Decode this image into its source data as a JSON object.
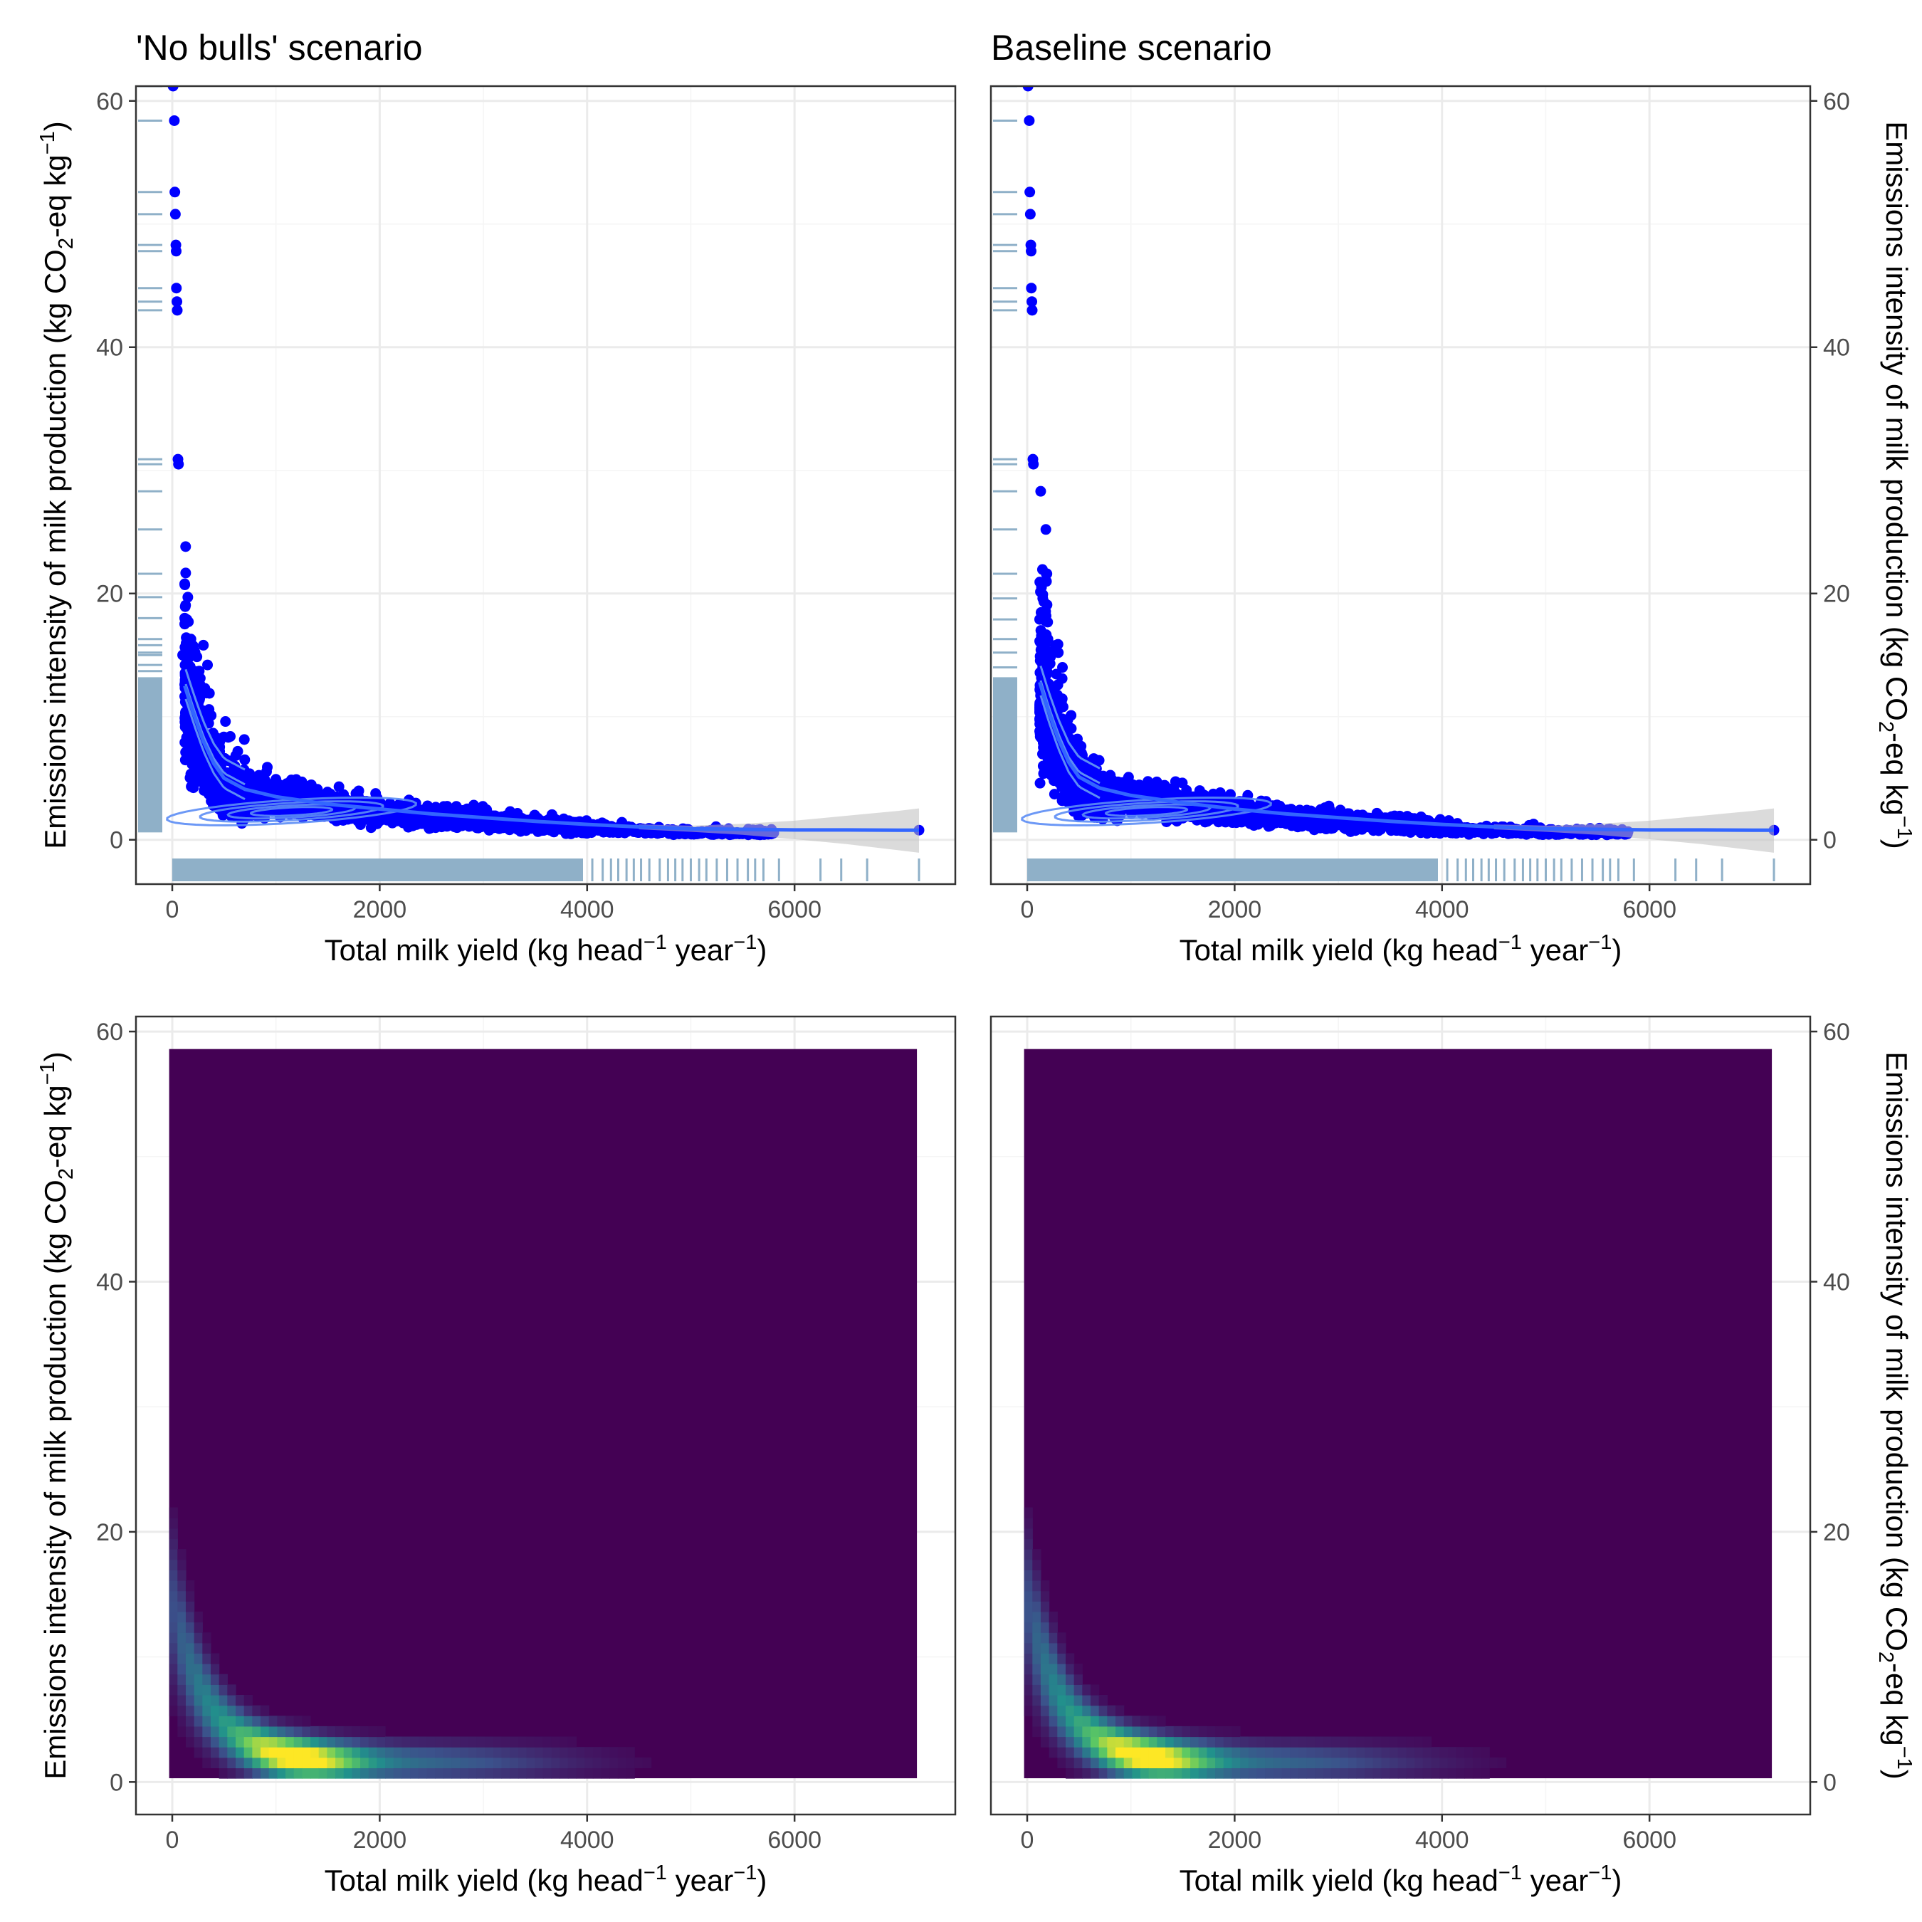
{
  "figure": {
    "tick_color": "#4d4d4d",
    "grid_major_color": "#ebebeb",
    "grid_minor_color": "#f5f5f5",
    "panel_border_color": "#333333"
  },
  "axis_labels": {
    "x_main": "Total milk yield (kg head",
    "x_sup": "−1",
    "x_mid": " year",
    "x_close": ")",
    "y_main": "Emissions intensity of milk production (kg CO",
    "y_sub": "2",
    "y_mid": "-eq kg",
    "y_sup": "−1",
    "y_close": ")"
  },
  "chart_data": [
    {
      "type": "scatter",
      "title": "'No bulls' scenario",
      "xlabel": "Total milk yield (kg head−1 year−1)",
      "ylabel": "Emissions intensity of milk production (kg CO2-eq kg−1)",
      "xlim": [
        -350,
        7550
      ],
      "ylim": [
        -3.6,
        61.2
      ],
      "xticks": [
        0,
        2000,
        4000,
        6000
      ],
      "yticks": [
        0,
        20,
        40,
        60
      ],
      "y_axis_side": "left",
      "grid": true,
      "point_color": "#0000ff",
      "smooth_color": "#3366ff",
      "ribbon_color": "#bebebe",
      "rug_color": "#8fb0c8",
      "outlier_points": [
        {
          "x": 8,
          "y": 61.2
        },
        {
          "x": 20,
          "y": 58.4
        },
        {
          "x": 25,
          "y": 52.6
        },
        {
          "x": 30,
          "y": 50.8
        },
        {
          "x": 35,
          "y": 48.3
        },
        {
          "x": 38,
          "y": 47.8
        },
        {
          "x": 40,
          "y": 44.8
        },
        {
          "x": 45,
          "y": 43.7
        },
        {
          "x": 48,
          "y": 43.0
        },
        {
          "x": 55,
          "y": 30.9
        },
        {
          "x": 60,
          "y": 30.5
        },
        {
          "x": 150,
          "y": 19.7
        },
        {
          "x": 120,
          "y": 18.0
        },
        {
          "x": 180,
          "y": 16.3
        },
        {
          "x": 300,
          "y": 15.8
        },
        {
          "x": 220,
          "y": 15.2
        },
        {
          "x": 100,
          "y": 15.0
        },
        {
          "x": 340,
          "y": 14.2
        },
        {
          "x": 260,
          "y": 13.7
        },
        {
          "x": 1250,
          "y": 4.7
        }
      ],
      "smooth_curve": {
        "x": [
          120,
          200,
          300,
          400,
          500,
          700,
          1000,
          1500,
          2000,
          2500,
          3000,
          3500,
          4000,
          4500,
          5000,
          5500,
          6000,
          6500,
          7000,
          7200
        ],
        "y": [
          12.5,
          10.4,
          8.0,
          6.2,
          5.0,
          4.1,
          3.5,
          2.9,
          2.5,
          2.1,
          1.8,
          1.5,
          1.25,
          1.05,
          0.9,
          0.85,
          0.8,
          0.8,
          0.78,
          0.78
        ]
      },
      "ribbon": {
        "x": [
          4500,
          5000,
          5500,
          6000,
          6500,
          7000,
          7200
        ],
        "ymin": [
          0.85,
          0.65,
          0.4,
          0.05,
          -0.35,
          -0.85,
          -1.05
        ],
        "ymax": [
          1.25,
          1.15,
          1.3,
          1.55,
          1.95,
          2.35,
          2.55
        ]
      },
      "y_rug": [
        61.2,
        58.4,
        52.6,
        50.8,
        48.3,
        47.8,
        44.8,
        43.7,
        43.0,
        30.9,
        30.5,
        28.3,
        25.2,
        21.6,
        19.7,
        18.0,
        16.3,
        15.8,
        15.2,
        15.0,
        14.2,
        13.7
      ],
      "x_rug_sparse": [
        3950,
        4050,
        4150,
        4230,
        4300,
        4380,
        4450,
        4520,
        4600,
        4700,
        4780,
        4850,
        4920,
        5000,
        5080,
        5150,
        5250,
        5350,
        5450,
        5550,
        5620,
        5700,
        5850,
        6250,
        6450,
        6700,
        7200
      ]
    },
    {
      "type": "scatter",
      "title": "Baseline scenario",
      "xlabel": "Total milk yield (kg head−1 year−1)",
      "ylabel": "Emissions intensity of milk production (kg CO2-eq kg−1)",
      "xlim": [
        -350,
        7550
      ],
      "ylim": [
        -3.6,
        61.2
      ],
      "xticks": [
        0,
        2000,
        4000,
        6000
      ],
      "yticks": [
        0,
        20,
        40,
        60
      ],
      "y_axis_side": "right",
      "grid": true,
      "point_color": "#0000ff",
      "smooth_color": "#3366ff",
      "ribbon_color": "#bebebe",
      "rug_color": "#8fb0c8",
      "outlier_points": [
        {
          "x": 8,
          "y": 61.2
        },
        {
          "x": 20,
          "y": 58.4
        },
        {
          "x": 25,
          "y": 52.6
        },
        {
          "x": 30,
          "y": 50.8
        },
        {
          "x": 35,
          "y": 48.3
        },
        {
          "x": 38,
          "y": 47.8
        },
        {
          "x": 40,
          "y": 44.8
        },
        {
          "x": 45,
          "y": 43.7
        },
        {
          "x": 48,
          "y": 43.0
        },
        {
          "x": 55,
          "y": 30.9
        },
        {
          "x": 60,
          "y": 30.5
        },
        {
          "x": 130,
          "y": 28.3
        },
        {
          "x": 180,
          "y": 25.2
        },
        {
          "x": 190,
          "y": 21.6
        },
        {
          "x": 150,
          "y": 19.6
        },
        {
          "x": 120,
          "y": 17.9
        },
        {
          "x": 200,
          "y": 16.3
        },
        {
          "x": 300,
          "y": 15.2
        },
        {
          "x": 340,
          "y": 14.0
        },
        {
          "x": 1250,
          "y": 4.7
        }
      ],
      "smooth_curve": {
        "x": [
          120,
          200,
          300,
          400,
          500,
          700,
          1000,
          1500,
          2000,
          2500,
          3000,
          3500,
          4000,
          4500,
          5000,
          5500,
          6000,
          6500,
          7000,
          7200
        ],
        "y": [
          12.8,
          10.6,
          8.2,
          6.3,
          5.1,
          4.2,
          3.6,
          3.0,
          2.5,
          2.1,
          1.8,
          1.5,
          1.25,
          1.05,
          0.9,
          0.85,
          0.8,
          0.8,
          0.78,
          0.78
        ]
      },
      "ribbon": {
        "x": [
          4500,
          5000,
          5500,
          6000,
          6500,
          7000,
          7200
        ],
        "ymin": [
          0.85,
          0.65,
          0.4,
          0.05,
          -0.35,
          -0.85,
          -1.05
        ],
        "ymax": [
          1.25,
          1.15,
          1.3,
          1.55,
          1.95,
          2.35,
          2.55
        ]
      },
      "y_rug": [
        61.2,
        58.4,
        52.6,
        50.8,
        48.3,
        47.8,
        44.8,
        43.7,
        43.0,
        30.9,
        30.5,
        28.3,
        25.2,
        21.6,
        19.6,
        17.9,
        16.3,
        15.2,
        14.0
      ],
      "x_rug_sparse": [
        3950,
        4050,
        4150,
        4230,
        4300,
        4380,
        4450,
        4520,
        4600,
        4700,
        4780,
        4850,
        4920,
        5000,
        5080,
        5150,
        5250,
        5350,
        5450,
        5550,
        5620,
        5700,
        5850,
        6250,
        6450,
        6700,
        7200
      ]
    },
    {
      "type": "heatmap",
      "title": "",
      "xlabel": "Total milk yield (kg head−1 year−1)",
      "ylabel": "Emissions intensity of milk production (kg CO2-eq kg−1)",
      "xlim": [
        -350,
        7550
      ],
      "ylim": [
        -2.6,
        61.2
      ],
      "xticks": [
        0,
        2000,
        4000,
        6000
      ],
      "yticks": [
        0,
        20,
        40,
        60
      ],
      "y_axis_side": "left",
      "grid": true,
      "tile_extent": {
        "x": [
          -30,
          7180
        ],
        "y": [
          0.3,
          58.6
        ]
      },
      "background_color": "#440154",
      "density_peak": {
        "x": 1150,
        "y": 2.2
      }
    },
    {
      "type": "heatmap",
      "title": "",
      "xlabel": "Total milk yield (kg head−1 year−1)",
      "ylabel": "Emissions intensity of milk production (kg CO2-eq kg−1)",
      "xlim": [
        -350,
        7550
      ],
      "ylim": [
        -2.6,
        61.2
      ],
      "xticks": [
        0,
        2000,
        4000,
        6000
      ],
      "yticks": [
        0,
        20,
        40,
        60
      ],
      "y_axis_side": "right",
      "grid": true,
      "tile_extent": {
        "x": [
          -30,
          7180
        ],
        "y": [
          0.3,
          58.6
        ]
      },
      "background_color": "#440154",
      "density_peak": {
        "x": 1100,
        "y": 2.2
      }
    }
  ]
}
